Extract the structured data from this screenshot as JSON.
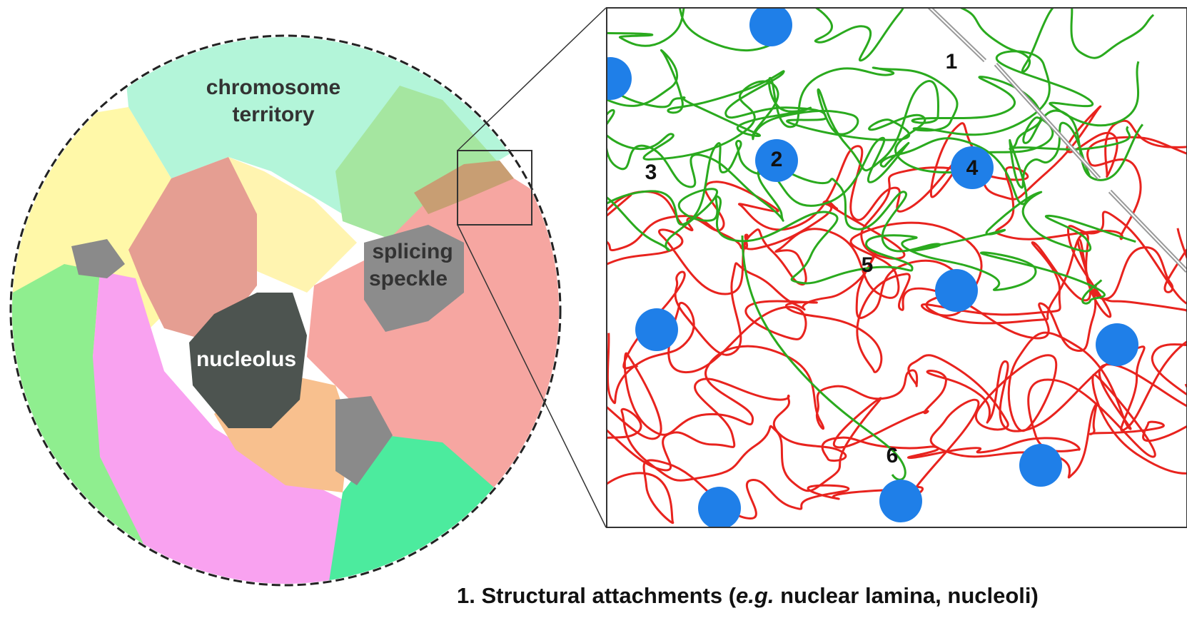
{
  "nucleus": {
    "chromosome_territory": [
      "chromosome",
      "territory"
    ],
    "splicing_speckle": [
      "splicing",
      "speckle"
    ],
    "nucleolus": "nucleolus"
  },
  "zoom": {
    "markers": [
      "1",
      "2",
      "3",
      "4",
      "5",
      "6"
    ]
  },
  "caption": {
    "lead": "1. Structural attachments (",
    "italic": "e.g.",
    "rest": " nuclear lamina, nucleoli)"
  }
}
